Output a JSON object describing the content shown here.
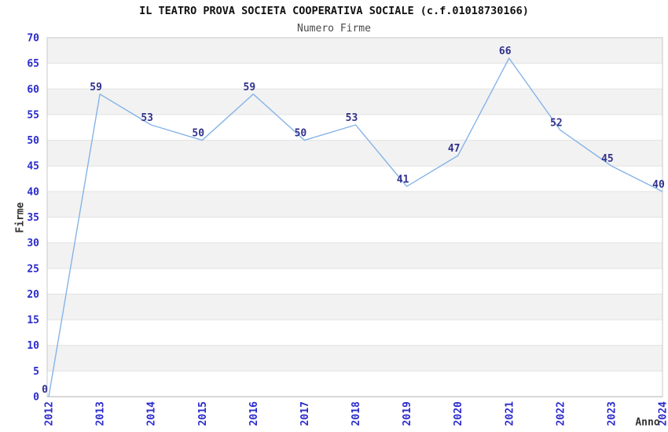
{
  "chart_data": {
    "type": "line",
    "title": "IL TEATRO PROVA SOCIETA COOPERATIVA SOCIALE (c.f.01018730166)",
    "subtitle": "Numero Firme",
    "xlabel": "Anno",
    "ylabel": "Firme",
    "categories": [
      "2012",
      "2013",
      "2014",
      "2015",
      "2016",
      "2017",
      "2018",
      "2019",
      "2020",
      "2021",
      "2022",
      "2023",
      "2024"
    ],
    "values": [
      0,
      59,
      53,
      50,
      59,
      50,
      53,
      41,
      47,
      66,
      52,
      45,
      40
    ],
    "ylim": [
      0,
      70
    ],
    "ytick_step": 5,
    "grid": true,
    "alternating_bands": true,
    "legend": false,
    "point_labels_shown": true
  },
  "colors": {
    "line": "#85b4e8",
    "tick_label": "#2a2acd",
    "value_label": "#31318c",
    "band": "#f2f2f2",
    "band_alt": "#ffffff",
    "grid": "#e2e2e2",
    "border": "#c9c9c9",
    "axis_line": "#b0b0b0",
    "title": "#111111",
    "subtitle": "#4a4a4a",
    "axis_title": "#333333",
    "background": "#ffffff"
  }
}
